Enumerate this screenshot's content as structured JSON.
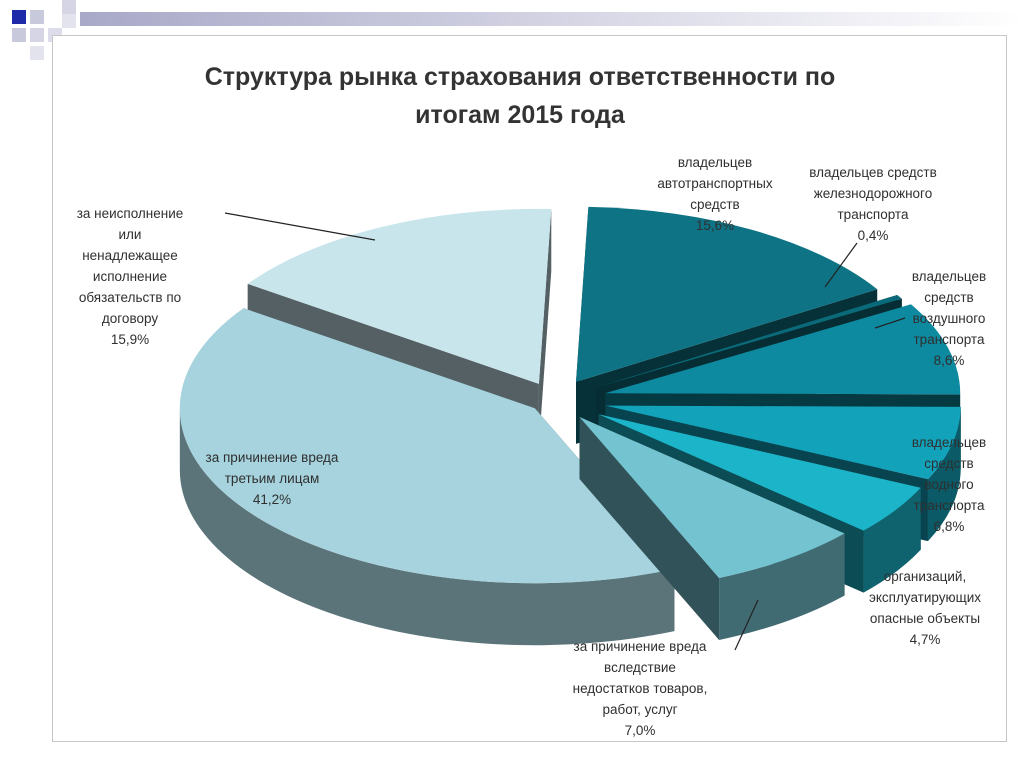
{
  "chart_data": {
    "type": "pie",
    "title": "Структура рынка страхования ответственности по итогам 2015 года",
    "title_lines": [
      "Структура рынка страхования ответственности по",
      "итогам 2015 года"
    ],
    "exploded": true,
    "three_d": true,
    "slices": [
      {
        "label": "владельцев автотранспортных средств",
        "lines": [
          "владельцев",
          "автотранспортных",
          "средств"
        ],
        "value": 15.6,
        "value_text": "15,6%",
        "color": "#0e7485"
      },
      {
        "label": "владельцев средств железнодорожного транспорта",
        "lines": [
          "владельцев средств",
          "железнодорожного",
          "транспорта"
        ],
        "value": 0.4,
        "value_text": "0,4%",
        "color": "#0b6a79"
      },
      {
        "label": "владельцев средств воздушного транспорта",
        "lines": [
          "владельцев",
          "средств",
          "воздушного",
          "транспорта"
        ],
        "value": 8.6,
        "value_text": "8,6%",
        "color": "#0d8aa0"
      },
      {
        "label": "владельцев средств водного транспорта",
        "lines": [
          "владельцев",
          "средств",
          "водного",
          "транспорта"
        ],
        "value": 6.8,
        "value_text": "6,8%",
        "color": "#12a3bb"
      },
      {
        "label": "организаций, эксплуатирующих опасные объекты",
        "lines": [
          "организаций,",
          "эксплуатирующих",
          "опасные объекты"
        ],
        "value": 4.7,
        "value_text": "4,7%",
        "color": "#1cb4c8"
      },
      {
        "label": "за причинение вреда вследствие недостатков товаров, работ, услуг",
        "lines": [
          "за причинение  вреда",
          "вследствие",
          "недостатков товаров,",
          "работ, услуг"
        ],
        "value": 7.0,
        "value_text": "7,0%",
        "color": "#74c3d1"
      },
      {
        "label": "за причинение вреда третьим лицам",
        "lines": [
          "за причинение  вреда",
          "третьим лицам"
        ],
        "value": 41.2,
        "value_text": "41,2%",
        "color": "#a6d3de"
      },
      {
        "label": "за неисполнение или ненадлежащее исполнение обязательств по договору",
        "lines": [
          "за неисполнение",
          "или",
          "ненадлежащее",
          "исполнение",
          "обязательств по",
          "договору"
        ],
        "value": 15.9,
        "value_text": "15,9%",
        "color": "#c9e5ec"
      }
    ]
  },
  "colors": {
    "deco_blue": "#1f2aa8",
    "deco_gray": "#b9b9d0",
    "text": "#2f2f2f"
  }
}
